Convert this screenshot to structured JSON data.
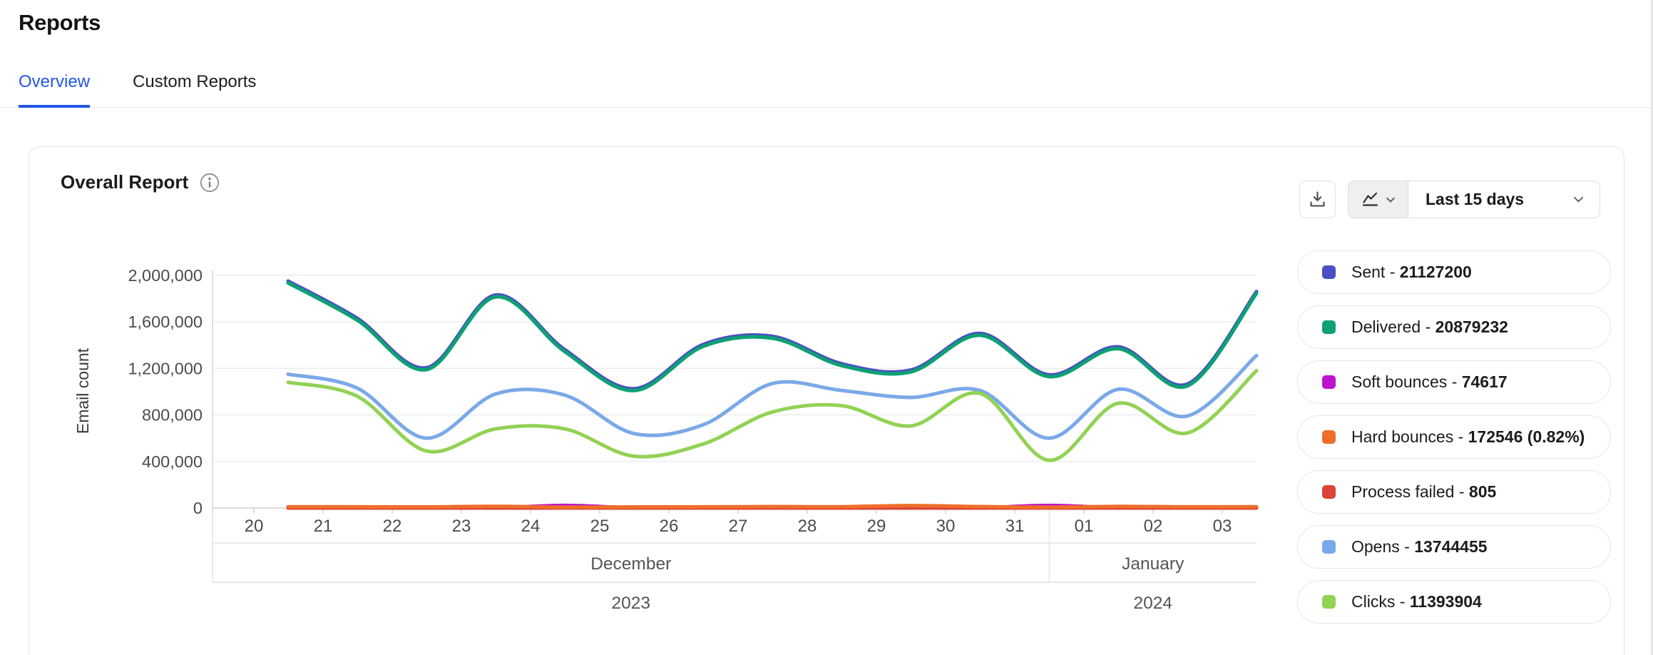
{
  "page": {
    "title": "Reports"
  },
  "tabs": [
    {
      "label": "Overview",
      "active": true
    },
    {
      "label": "Custom Reports",
      "active": false
    }
  ],
  "card": {
    "title": "Overall Report",
    "toolbar": {
      "range": "Last 15 days"
    }
  },
  "legend": {
    "items": [
      {
        "label": "Sent - ",
        "value": "21127200",
        "color": "#4b4fc5"
      },
      {
        "label": "Delivered - ",
        "value": "20879232",
        "color": "#0da173"
      },
      {
        "label": "Soft bounces - ",
        "value": "74617",
        "color": "#bd13ce"
      },
      {
        "label": "Hard bounces - ",
        "value": "172546 (0.82%)",
        "color": "#ef6e2a"
      },
      {
        "label": "Process failed - ",
        "value": "805",
        "color": "#d9453a"
      },
      {
        "label": "Opens - ",
        "value": "13744455",
        "color": "#7aa9e9"
      },
      {
        "label": "Clicks - ",
        "value": "11393904",
        "color": "#92d254"
      }
    ]
  },
  "chart_data": {
    "type": "line",
    "title": "Overall Report",
    "ylabel": "Email count",
    "ylim": [
      0,
      2000000
    ],
    "grid": true,
    "legend_position": "right",
    "yticks": [
      {
        "value": 0,
        "label": "0"
      },
      {
        "value": 400000,
        "label": "400,000"
      },
      {
        "value": 800000,
        "label": "800,000"
      },
      {
        "value": 1200000,
        "label": "1,200,000"
      },
      {
        "value": 1600000,
        "label": "1,600,000"
      },
      {
        "value": 2000000,
        "label": "2,000,000"
      }
    ],
    "days": [
      "20",
      "21",
      "22",
      "23",
      "24",
      "25",
      "26",
      "27",
      "28",
      "29",
      "30",
      "31",
      "01",
      "02",
      "03"
    ],
    "months": [
      {
        "label": "December",
        "year": "2023",
        "span_days": 12
      },
      {
        "label": "January",
        "year": "2024",
        "span_days": 3
      }
    ],
    "series": [
      {
        "name": "Sent",
        "color": "#4b4fc5",
        "total": 21127200,
        "values": [
          1950000,
          1630000,
          1205000,
          1830000,
          1360000,
          1025000,
          1405000,
          1475000,
          1240000,
          1185000,
          1500000,
          1145000,
          1385000,
          1065000,
          1860000
        ]
      },
      {
        "name": "Delivered",
        "color": "#0da173",
        "total": 20879232,
        "values": [
          1934000,
          1614000,
          1189000,
          1814000,
          1344000,
          1009000,
          1389000,
          1459000,
          1224000,
          1169000,
          1484000,
          1129000,
          1369000,
          1049000,
          1844000
        ]
      },
      {
        "name": "Soft bounces",
        "color": "#bd13ce",
        "total": 74617,
        "values": [
          2000,
          2000,
          2000,
          2000,
          22000,
          2000,
          2000,
          2000,
          2000,
          2000,
          2000,
          22000,
          2000,
          2000,
          2000
        ]
      },
      {
        "name": "Hard bounces",
        "color": "#ef6e2a",
        "total": 172546,
        "values": [
          11000,
          10000,
          9000,
          15000,
          7000,
          9000,
          10000,
          12000,
          11000,
          21000,
          12000,
          7000,
          14000,
          10000,
          11000
        ]
      },
      {
        "name": "Process failed",
        "color": "#d9453a",
        "total": 805,
        "values": [
          54,
          54,
          54,
          54,
          54,
          54,
          54,
          54,
          54,
          54,
          53,
          54,
          54,
          54,
          54
        ]
      },
      {
        "name": "Opens",
        "color": "#7aa9e9",
        "total": 13744455,
        "values": [
          1150000,
          1030000,
          600000,
          980000,
          970000,
          640000,
          715000,
          1070000,
          1010000,
          950000,
          1010000,
          600000,
          1020000,
          790000,
          1310000
        ]
      },
      {
        "name": "Clicks",
        "color": "#92d254",
        "total": 11393904,
        "values": [
          1080000,
          960000,
          490000,
          680000,
          680000,
          445000,
          550000,
          825000,
          880000,
          705000,
          985000,
          410000,
          900000,
          645000,
          1180000
        ]
      }
    ]
  }
}
